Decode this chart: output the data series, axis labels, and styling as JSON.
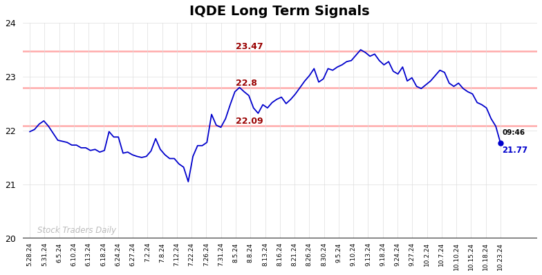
{
  "title": "IQDE Long Term Signals",
  "ylim": [
    20,
    24
  ],
  "yticks": [
    20,
    21,
    22,
    23,
    24
  ],
  "hlines": [
    22.09,
    22.8,
    23.47
  ],
  "hline_color": "#ffaaaa",
  "hline_label_color": "#990000",
  "watermark": "Stock Traders Daily",
  "watermark_color": "#bbbbbb",
  "last_label_time": "09:46",
  "last_label_price": "21.77",
  "line_color": "#0000cc",
  "dot_color": "#0000cc",
  "xtick_labels": [
    "5.28.24",
    "5.31.24",
    "6.5.24",
    "6.10.24",
    "6.13.24",
    "6.18.24",
    "6.24.24",
    "6.27.24",
    "7.2.24",
    "7.8.24",
    "7.12.24",
    "7.22.24",
    "7.26.24",
    "7.31.24",
    "8.5.24",
    "8.8.24",
    "8.13.24",
    "8.16.24",
    "8.21.24",
    "8.26.24",
    "8.30.24",
    "9.5.24",
    "9.10.24",
    "9.13.24",
    "9.18.24",
    "9.24.24",
    "9.27.24",
    "10.2.24",
    "10.7.24",
    "10.10.24",
    "10.15.24",
    "10.18.24",
    "10.23.24"
  ],
  "prices": [
    21.98,
    22.02,
    22.12,
    22.18,
    22.08,
    21.95,
    21.82,
    21.8,
    21.78,
    21.73,
    21.73,
    21.68,
    21.68,
    21.63,
    21.65,
    21.6,
    21.63,
    21.98,
    21.88,
    21.88,
    21.58,
    21.6,
    21.55,
    21.52,
    21.5,
    21.52,
    21.62,
    21.85,
    21.65,
    21.55,
    21.48,
    21.48,
    21.38,
    21.32,
    21.05,
    21.52,
    21.72,
    21.72,
    21.78,
    22.3,
    22.1,
    22.06,
    22.22,
    22.48,
    22.72,
    22.8,
    22.72,
    22.65,
    22.42,
    22.32,
    22.48,
    22.42,
    22.52,
    22.58,
    22.62,
    22.5,
    22.58,
    22.68,
    22.8,
    22.92,
    23.02,
    23.15,
    22.9,
    22.96,
    23.15,
    23.12,
    23.18,
    23.22,
    23.28,
    23.3,
    23.4,
    23.5,
    23.45,
    23.38,
    23.42,
    23.3,
    23.22,
    23.28,
    23.1,
    23.05,
    23.18,
    22.92,
    22.98,
    22.82,
    22.78,
    22.85,
    22.92,
    23.02,
    23.12,
    23.08,
    22.88,
    22.82,
    22.88,
    22.78,
    22.72,
    22.68,
    22.52,
    22.48,
    22.42,
    22.22,
    22.08,
    21.77
  ]
}
